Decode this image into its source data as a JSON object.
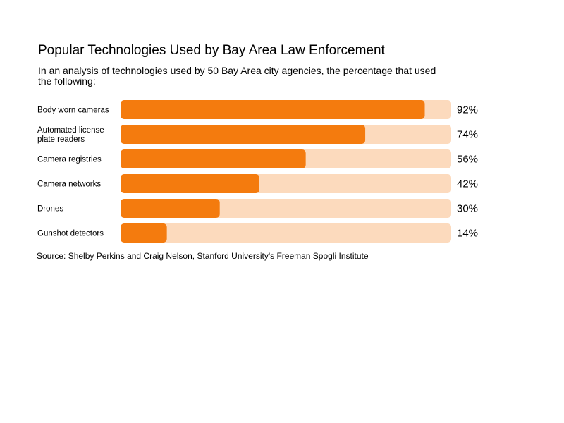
{
  "chart_data": {
    "type": "bar",
    "orientation": "horizontal",
    "title": "Popular Technologies Used by Bay Area Law Enforcement",
    "subtitle": "In an analysis of technologies used by 50 Bay Area city agencies, the percentage that used the following:",
    "categories": [
      "Body worn cameras",
      "Automated license plate readers",
      "Camera registries",
      "Camera networks",
      "Drones",
      "Gunshot detectors"
    ],
    "category_lines": [
      [
        "Body worn cameras"
      ],
      [
        "Automated license",
        "plate readers"
      ],
      [
        "Camera registries"
      ],
      [
        "Camera networks"
      ],
      [
        "Drones"
      ],
      [
        "Gunshot detectors"
      ]
    ],
    "values": [
      92,
      74,
      56,
      42,
      30,
      14
    ],
    "value_labels": [
      "92%",
      "74%",
      "56%",
      "42%",
      "30%",
      "14%"
    ],
    "xlim": [
      0,
      100
    ],
    "unit": "%",
    "source": "Source: Shelby Perkins and Craig Nelson, Stanford University's Freeman Spogli Institute"
  },
  "colors": {
    "bar": "#f47b0e",
    "track": "#fcdabd",
    "text": "#000000"
  }
}
